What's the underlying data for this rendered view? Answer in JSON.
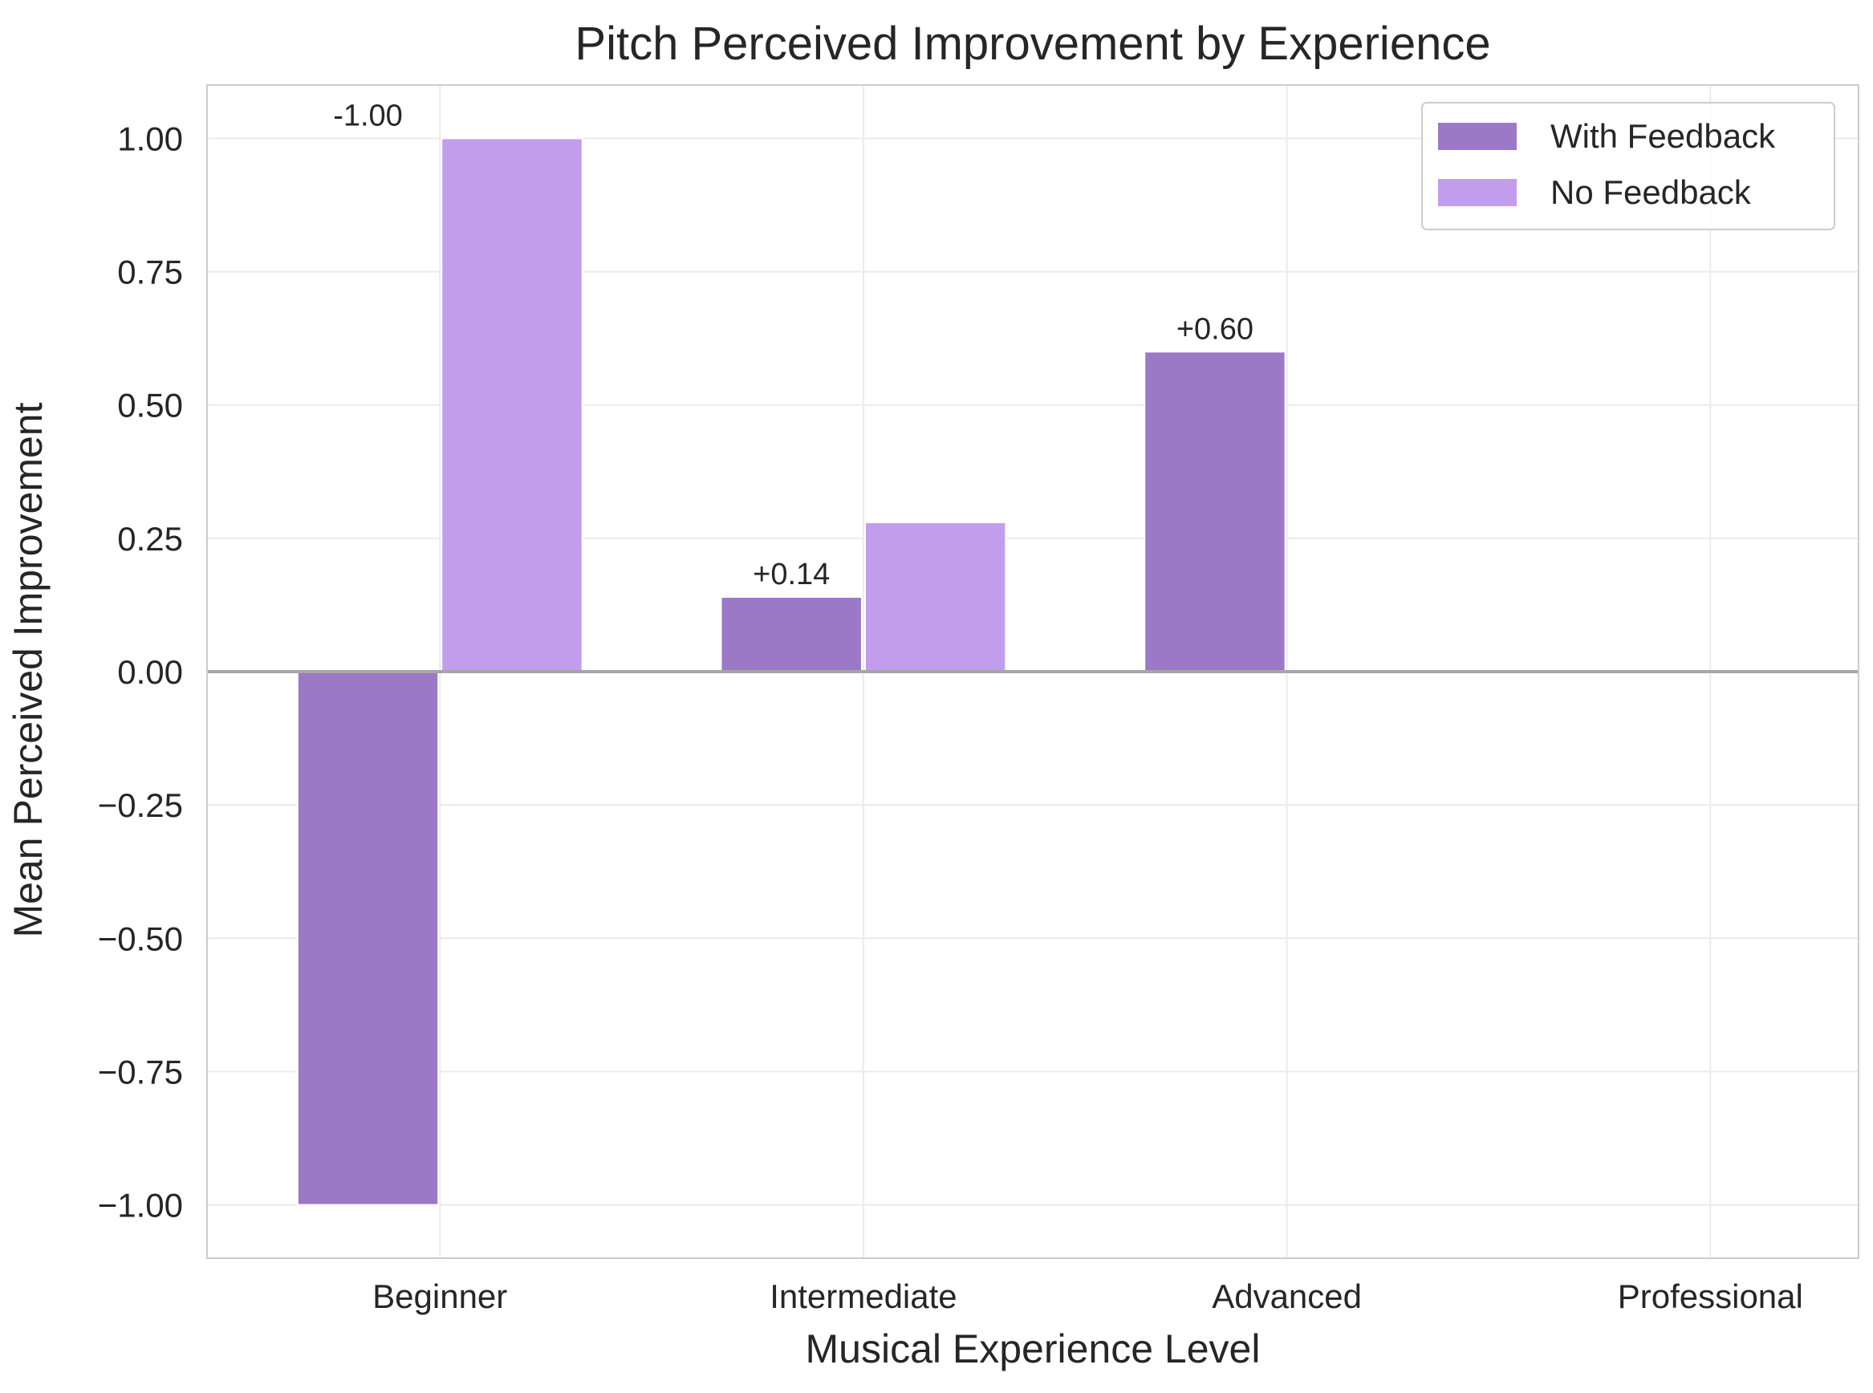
{
  "chart_data": {
    "type": "bar",
    "title": "Pitch Perceived Improvement by Experience",
    "xlabel": "Musical Experience Level",
    "ylabel": "Mean Perceived Improvement",
    "categories": [
      "Beginner",
      "Intermediate",
      "Advanced",
      "Professional"
    ],
    "series": [
      {
        "name": "With Feedback",
        "values": [
          -1.0,
          0.14,
          0.6,
          0.0
        ],
        "color": "#9b79c6"
      },
      {
        "name": "No Feedback",
        "values": [
          1.0,
          0.28,
          0.0,
          0.0
        ],
        "color": "#c39ded"
      }
    ],
    "data_labels": [
      {
        "category": "Beginner",
        "series": "With Feedback",
        "text": "-1.00"
      },
      {
        "category": "Intermediate",
        "series": "With Feedback",
        "text": "+0.14"
      },
      {
        "category": "Advanced",
        "series": "With Feedback",
        "text": "+0.60"
      }
    ],
    "ylim": [
      -1.1,
      1.1
    ],
    "yticks": [
      1.0,
      0.75,
      0.5,
      0.25,
      0.0,
      -0.25,
      -0.5,
      -0.75,
      -1.0
    ],
    "ytick_labels": [
      "1.00",
      "0.75",
      "0.50",
      "0.25",
      "0.00",
      "−0.25",
      "−0.50",
      "−0.75",
      "−1.00"
    ],
    "grid": true,
    "zero_line": true,
    "legend_position": "top-right"
  }
}
